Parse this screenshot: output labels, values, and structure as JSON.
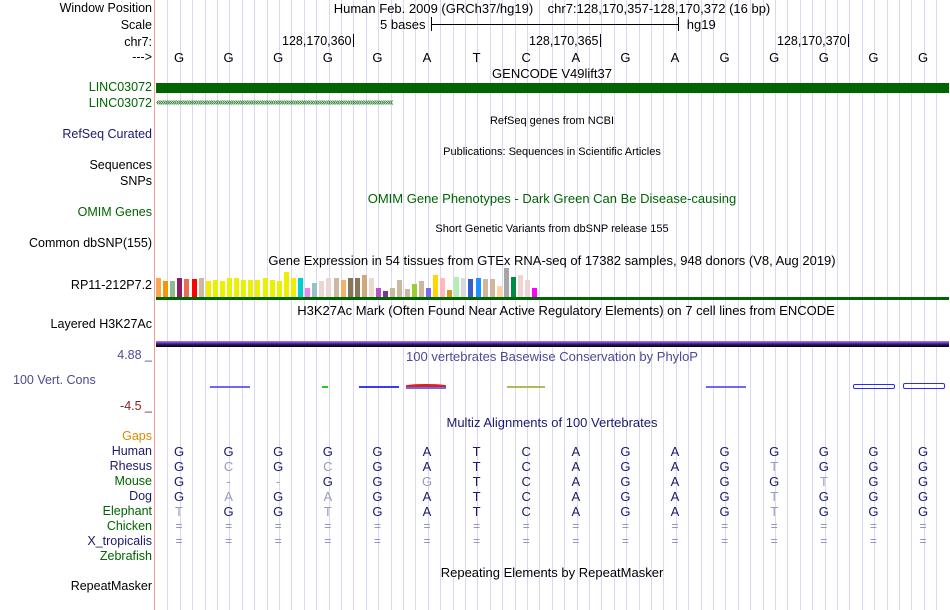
{
  "header": {
    "assembly": "Human Feb. 2009 (GRCh37/hg19)",
    "position": "chr7:128,170,357-128,170,372 (16 bp)",
    "scale_label": "5 bases",
    "scale_db": "hg19"
  },
  "labels": {
    "window_position": "Window Position",
    "scale": "Scale",
    "chrom": "chr7:",
    "strand": "--->",
    "gencode_1": "LINC03072",
    "gencode_2": "LINC03072",
    "refseq": "RefSeq Curated",
    "sequences": "Sequences",
    "snps": "SNPs",
    "omim": "OMIM Genes",
    "dbsnp": "Common dbSNP(155)",
    "gtex_gene": "RP11-212P7.2",
    "h3k27ac": "Layered H3K27Ac",
    "phylop_max": "4.88 _",
    "phylop": "100 Vert. Cons",
    "phylop_min": "-4.5 _",
    "gaps": "Gaps",
    "rmsk": "RepeatMasker"
  },
  "ticks": [
    "128,170,360",
    "128,170,365",
    "128,170,370"
  ],
  "bases": [
    "G",
    "G",
    "G",
    "G",
    "G",
    "A",
    "T",
    "C",
    "A",
    "G",
    "A",
    "G",
    "G",
    "G",
    "G",
    "G"
  ],
  "gencode_arrows": "‹‹‹‹‹‹‹‹‹‹‹‹‹‹‹‹‹‹‹‹‹‹‹‹‹‹‹‹‹‹‹‹‹‹‹‹‹‹‹‹‹‹‹‹‹‹‹‹‹‹‹‹‹‹‹‹‹‹‹‹‹‹‹‹‹‹‹‹‹‹‹‹‹‹‹‹‹‹‹‹‹‹‹‹‹‹‹‹‹‹‹‹‹‹‹‹‹‹‹‹‹‹‹‹‹‹‹‹‹‹‹‹‹‹‹‹‹‹‹‹‹‹‹‹‹‹‹‹‹",
  "track_titles": {
    "gencode": "GENCODE V49lift37",
    "refseq": "RefSeq genes from NCBI",
    "publications": "Publications: Sequences in Scientific Articles",
    "omim": "OMIM Gene Phenotypes - Dark Green Can Be Disease-causing",
    "dbsnp": "Short Genetic Variants from dbSNP release 155",
    "gtex": "Gene Expression in 54 tissues from GTEx RNA-seq of 17382 samples, 948 donors (V8, Aug 2019)",
    "h3k27ac": "H3K27Ac Mark (Often Found Near Active Regulatory Elements) on 7 cell lines from ENCODE",
    "phylop": "100 vertebrates Basewise Conservation by PhyloP",
    "multiz": "Multiz Alignments of 100 Vertebrates",
    "rmsk": "Repeating Elements by RepeatMasker"
  },
  "gtex": {
    "relative_levels": [
      0.62,
      0.5,
      0.5,
      0.6,
      0.58,
      0.58,
      0.6,
      0.5,
      0.54,
      0.5,
      0.62,
      0.62,
      0.54,
      0.54,
      0.54,
      0.6,
      0.54,
      0.5,
      0.8,
      0.6,
      0.6,
      0.3,
      0.45,
      0.52,
      0.62,
      0.6,
      0.54,
      0.6,
      0.6,
      0.7,
      0.62,
      0.3,
      0.2,
      0.3,
      0.54,
      0.25,
      0.42,
      0.5,
      0.3,
      0.72,
      0.62,
      0.24,
      0.66,
      0.62,
      0.58,
      0.62,
      0.58,
      0.58,
      0.34,
      0.95,
      0.63,
      0.7,
      0.54,
      0.3
    ],
    "colors": [
      "#ffa54f",
      "#ee9a00",
      "#8fbc8f",
      "#8b1c62",
      "#ee6a50",
      "#ff0000",
      "#cdb79e",
      "#eeee00",
      "#eeee00",
      "#eeee00",
      "#eeee00",
      "#eeee00",
      "#eeee00",
      "#eeee00",
      "#eeee00",
      "#eeee00",
      "#eeee00",
      "#eeee00",
      "#eeee00",
      "#eeee00",
      "#00cdcd",
      "#ee82ee",
      "#9ac0cd",
      "#eed5d2",
      "#eed5d2",
      "#cdb79e",
      "#eeb46f",
      "#8b7355",
      "#8b7355",
      "#cdaa7d",
      "#eed5d2",
      "#b452cd",
      "#7a378b",
      "#cdb79e",
      "#cdb79e",
      "#cdb79e",
      "#9acd32",
      "#cdb79e",
      "#7b68ee",
      "#ffd700",
      "#ffb6c1",
      "#cd9b1d",
      "#b4eeb4",
      "#d9d9d9",
      "#3a5fcd",
      "#1e90ff",
      "#cdb79e",
      "#cdb79e",
      "#ffd39b",
      "#a6a6a6",
      "#008b45",
      "#eed5d2",
      "#eed5d2",
      "#ff00ff"
    ]
  },
  "multiz": {
    "species": [
      {
        "name": "Human",
        "color": "#1a1a6e",
        "seq": [
          "G",
          "G",
          "G",
          "G",
          "G",
          "A",
          "T",
          "C",
          "A",
          "G",
          "A",
          "G",
          "G",
          "G",
          "G",
          "G"
        ],
        "faint": []
      },
      {
        "name": "Rhesus",
        "color": "#1a1a6e",
        "seq": [
          "G",
          "C",
          "G",
          "C",
          "G",
          "A",
          "T",
          "C",
          "A",
          "G",
          "A",
          "G",
          "T",
          "G",
          "G",
          "G"
        ],
        "faint": [
          1,
          3,
          12
        ]
      },
      {
        "name": "Mouse",
        "color": "#006400",
        "seq": [
          "G",
          "-",
          "-",
          "G",
          "G",
          "G",
          "T",
          "C",
          "A",
          "G",
          "A",
          "G",
          "G",
          "T",
          "G",
          "G"
        ],
        "faint": [
          1,
          2,
          5,
          13
        ]
      },
      {
        "name": "Dog",
        "color": "#1a1a6e",
        "seq": [
          "G",
          "A",
          "G",
          "A",
          "G",
          "A",
          "T",
          "C",
          "A",
          "G",
          "A",
          "G",
          "T",
          "G",
          "G",
          "G"
        ],
        "faint": [
          1,
          3,
          12
        ]
      },
      {
        "name": "Elephant",
        "color": "#006400",
        "seq": [
          "T",
          "G",
          "G",
          "T",
          "G",
          "A",
          "T",
          "C",
          "A",
          "G",
          "A",
          "G",
          "T",
          "G",
          "G",
          "G"
        ],
        "faint": [
          0,
          3,
          12
        ]
      },
      {
        "name": "Chicken",
        "color": "#006400",
        "seq": [
          "=",
          "=",
          "=",
          "=",
          "=",
          "=",
          "=",
          "=",
          "=",
          "=",
          "=",
          "=",
          "=",
          "=",
          "=",
          "="
        ],
        "faint": []
      },
      {
        "name": "X_tropicalis",
        "color": "#1a1a6e",
        "seq": [
          "=",
          "=",
          "=",
          "=",
          "=",
          "=",
          "=",
          "=",
          "=",
          "=",
          "=",
          "=",
          "=",
          "=",
          "=",
          "="
        ],
        "faint": []
      },
      {
        "name": "Zebrafish",
        "color": "#006400",
        "seq": [],
        "faint": []
      }
    ]
  },
  "colors": {
    "gencode": "#006400",
    "refseq_label": "#1a1a6e",
    "omim": "#006400",
    "phylop_label": "#4a4a96",
    "phylop_max": "#4a4a96",
    "phylop_min": "#8b2020",
    "gaps": "#e08a00"
  }
}
